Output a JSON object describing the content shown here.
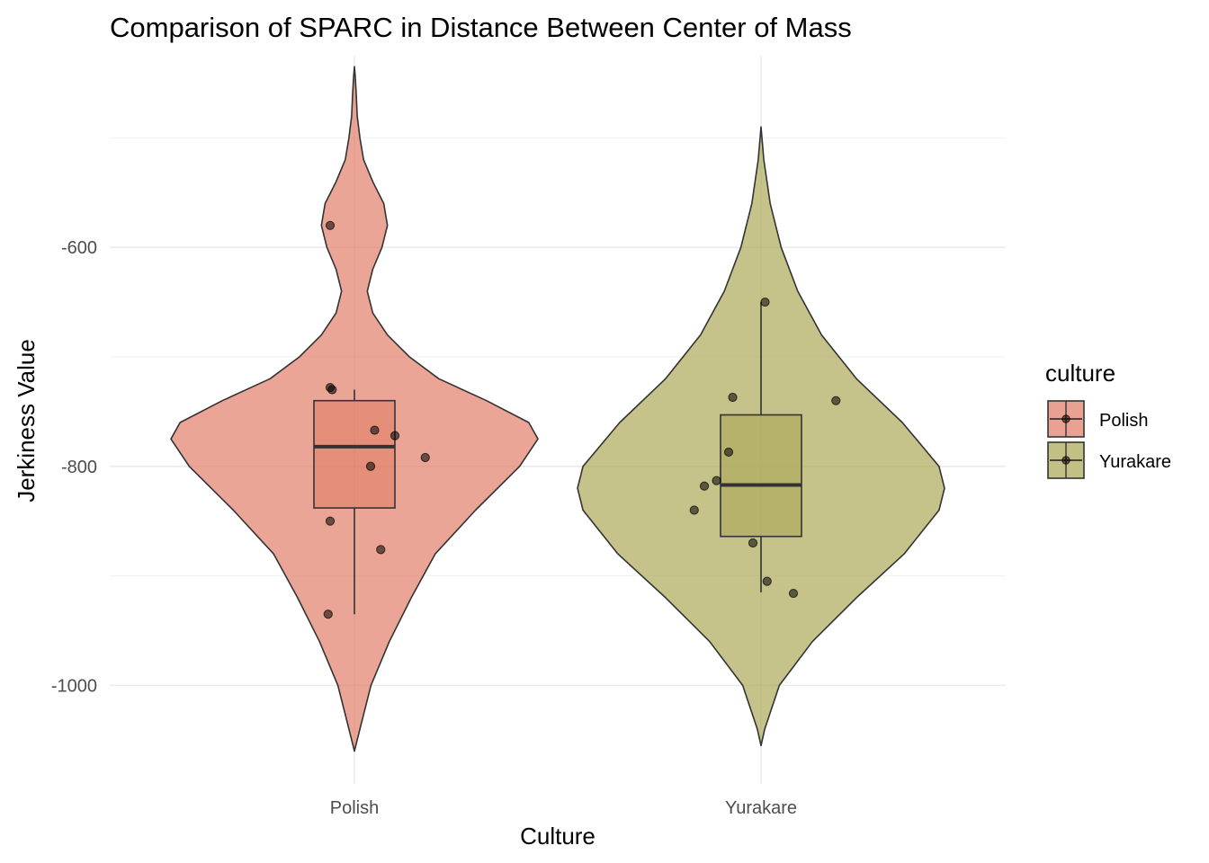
{
  "chart_data": {
    "type": "violin",
    "title": "Comparison of SPARC in Distance Between Center of Mass",
    "xlabel": "Culture",
    "ylabel": "Jerkiness Value",
    "categories": [
      "Polish",
      "Yurakare"
    ],
    "ylim": [
      -1090,
      -425
    ],
    "yticks": [
      -600,
      -800,
      -1000
    ],
    "yticks_minor": [
      -500,
      -700,
      -900
    ],
    "grid": true,
    "legend": {
      "title": "culture",
      "position": "right",
      "entries": [
        "Polish",
        "Yurakare"
      ]
    },
    "colors": {
      "Polish": "#e07b64",
      "Yurakare": "#a9a553"
    },
    "series": [
      {
        "name": "Polish",
        "violin": {
          "y": [
            -1060,
            -1040,
            -1000,
            -960,
            -920,
            -880,
            -840,
            -800,
            -775,
            -760,
            -740,
            -720,
            -700,
            -680,
            -660,
            -640,
            -620,
            -600,
            -580,
            -560,
            -540,
            -520,
            -500,
            -480,
            -460,
            -445,
            -435
          ],
          "density": [
            0.0,
            0.03,
            0.09,
            0.19,
            0.31,
            0.44,
            0.66,
            0.9,
            1.0,
            0.95,
            0.72,
            0.46,
            0.3,
            0.18,
            0.1,
            0.07,
            0.1,
            0.15,
            0.18,
            0.16,
            0.1,
            0.05,
            0.03,
            0.015,
            0.01,
            0.005,
            0.0
          ]
        },
        "box": {
          "q1": -838,
          "median": -782,
          "q3": -740,
          "whisker_low": -935,
          "whisker_high": -730
        },
        "points": [
          {
            "x": -0.06,
            "y": -580
          },
          {
            "x": -0.06,
            "y": -728
          },
          {
            "x": -0.055,
            "y": -730
          },
          {
            "x": 0.05,
            "y": -767
          },
          {
            "x": 0.1,
            "y": -772
          },
          {
            "x": 0.175,
            "y": -792
          },
          {
            "x": 0.04,
            "y": -800
          },
          {
            "x": -0.06,
            "y": -850
          },
          {
            "x": 0.065,
            "y": -876
          },
          {
            "x": -0.065,
            "y": -935
          }
        ]
      },
      {
        "name": "Yurakare",
        "violin": {
          "y": [
            -1055,
            -1040,
            -1000,
            -960,
            -920,
            -880,
            -840,
            -820,
            -800,
            -760,
            -720,
            -680,
            -640,
            -600,
            -560,
            -520,
            -490
          ],
          "density": [
            0.0,
            0.02,
            0.1,
            0.28,
            0.52,
            0.78,
            0.97,
            1.0,
            0.97,
            0.77,
            0.52,
            0.33,
            0.2,
            0.11,
            0.05,
            0.015,
            0.0
          ]
        },
        "box": {
          "q1": -864,
          "median": -817,
          "q3": -753,
          "whisker_low": -915,
          "whisker_high": -650
        },
        "points": [
          {
            "x": 0.01,
            "y": -650
          },
          {
            "x": -0.07,
            "y": -737
          },
          {
            "x": 0.185,
            "y": -740
          },
          {
            "x": -0.08,
            "y": -787
          },
          {
            "x": -0.11,
            "y": -813
          },
          {
            "x": -0.14,
            "y": -818
          },
          {
            "x": -0.165,
            "y": -840
          },
          {
            "x": -0.02,
            "y": -870
          },
          {
            "x": 0.015,
            "y": -905
          },
          {
            "x": 0.08,
            "y": -916
          }
        ]
      }
    ]
  }
}
